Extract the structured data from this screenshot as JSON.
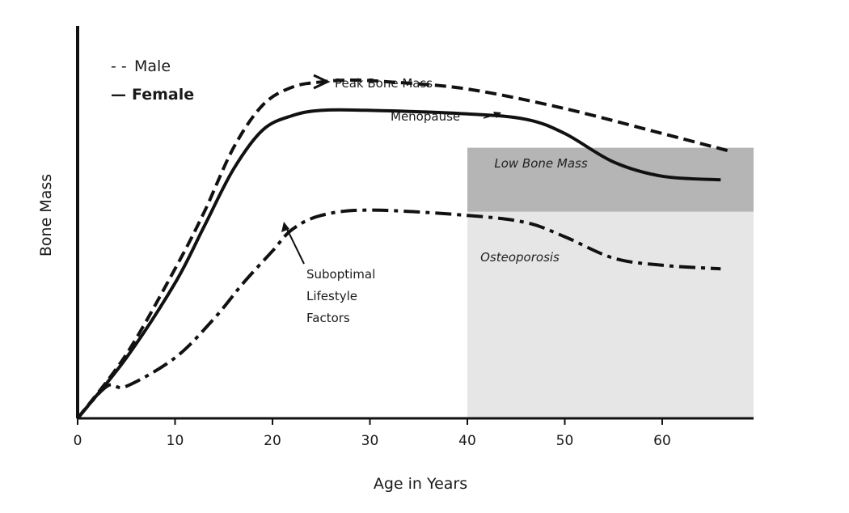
{
  "chart_data": {
    "type": "line",
    "title": "",
    "xlabel": "Age in Years",
    "ylabel": "Bone Mass",
    "xlim": [
      0,
      70
    ],
    "ylim": [
      0,
      100
    ],
    "xticks": [
      0,
      10,
      20,
      30,
      40,
      50,
      60
    ],
    "xtick_labels": [
      "0",
      "10",
      "20",
      "30",
      "40",
      "50",
      "60"
    ],
    "legend": {
      "position": "top-left",
      "entries": [
        {
          "marker": "- -",
          "label": "Male",
          "style": "dashed"
        },
        {
          "marker": "—",
          "label": "Female",
          "style": "solid"
        }
      ]
    },
    "series": [
      {
        "name": "Male",
        "style": "dashed",
        "x": [
          0,
          5,
          10,
          13,
          16,
          19,
          22,
          25,
          28,
          32,
          40,
          50,
          60,
          67
        ],
        "y": [
          0,
          18,
          42,
          58,
          76,
          88,
          93,
          94.5,
          95,
          94.5,
          92.5,
          87,
          80,
          75
        ]
      },
      {
        "name": "Female",
        "style": "solid",
        "x": [
          0,
          5,
          10,
          13,
          16,
          19,
          22,
          25,
          30,
          40,
          46,
          50,
          55,
          60,
          66
        ],
        "y": [
          0,
          17,
          38,
          54,
          70,
          81,
          85,
          86.5,
          86.5,
          85.5,
          84,
          80,
          72,
          68,
          67
        ]
      },
      {
        "name": "Suboptimal Lifestyle Factors",
        "style": "dashdot",
        "x": [
          0,
          3,
          5,
          10,
          14,
          17,
          20,
          22,
          25,
          30,
          40,
          46,
          50,
          55,
          60,
          66
        ],
        "y": [
          0,
          9,
          9,
          17,
          28,
          38,
          47,
          53,
          57,
          58.5,
          57,
          55,
          51,
          45,
          43,
          42
        ]
      }
    ],
    "regions": [
      {
        "label": "Low Bone Mass",
        "x": [
          40,
          70
        ],
        "y": [
          58,
          76
        ],
        "color": "#b5b5b5"
      },
      {
        "label": "Osteoporosis",
        "x": [
          40,
          70
        ],
        "y": [
          0,
          58
        ],
        "color": "#e6e6e6"
      }
    ],
    "annotations": [
      {
        "text": "Peak Bone Mass",
        "x": 27,
        "y": 90
      },
      {
        "text": "Menopause",
        "x": 46,
        "y": 84
      },
      {
        "lines": [
          "Suboptimal",
          "Lifestyle",
          "Factors"
        ],
        "x": 22,
        "y": 53
      }
    ]
  }
}
